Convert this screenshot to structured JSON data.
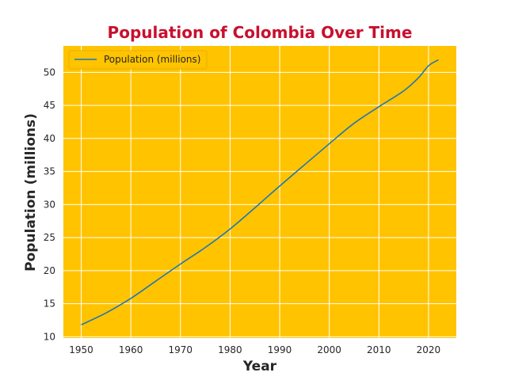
{
  "colors": {
    "plot_background": "#FFC300",
    "line": "#1F77B4",
    "title": "#C8102E",
    "grid": "#FFFFFF"
  },
  "chart_data": {
    "type": "line",
    "title": "Population of Colombia Over Time",
    "xlabel": "Year",
    "ylabel": "Population (millions)",
    "xlim": [
      1946.4,
      2025.6
    ],
    "ylim": [
      9.8,
      54.0
    ],
    "xticks": [
      1950,
      1960,
      1970,
      1980,
      1990,
      2000,
      2010,
      2020
    ],
    "yticks": [
      10,
      15,
      20,
      25,
      30,
      35,
      40,
      45,
      50
    ],
    "grid": true,
    "legend": {
      "position": "top-left"
    },
    "series": [
      {
        "name": "Population (millions)",
        "x": [
          1950,
          1955,
          1960,
          1965,
          1970,
          1975,
          1980,
          1985,
          1990,
          2000,
          2005,
          2010,
          2015,
          2018,
          2020,
          2022
        ],
        "values": [
          11.8,
          13.6,
          15.8,
          18.4,
          21.0,
          23.5,
          26.3,
          29.5,
          32.8,
          39.2,
          42.3,
          44.8,
          47.2,
          49.2,
          51.0,
          51.9
        ]
      }
    ]
  }
}
